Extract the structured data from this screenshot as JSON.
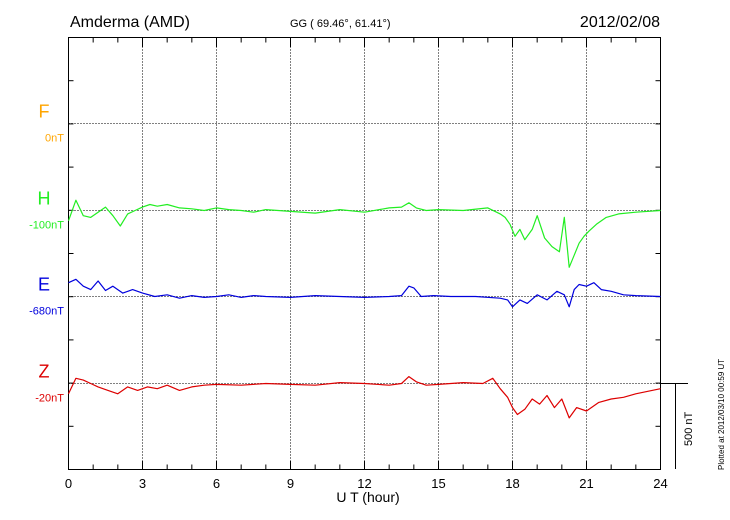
{
  "header": {
    "station": "Amderma (AMD)",
    "coords": "GG ( 69.46°,  61.41°)",
    "date": "2012/02/08"
  },
  "plotted_note": "Plotted at 2012/03/10 00:59 UT",
  "scale_label": "500 nT",
  "chart_data": {
    "type": "line",
    "xlabel": "U T (hour)",
    "xlim": [
      0,
      24
    ],
    "x_ticks": [
      "0",
      "3",
      "6",
      "9",
      "12",
      "15",
      "18",
      "21",
      "24"
    ],
    "grid": true,
    "scale_bar_nT": 500,
    "series": [
      {
        "name": "F",
        "baseline_label": "0nT",
        "color": "#ffa500",
        "x": [],
        "values": []
      },
      {
        "name": "H",
        "baseline_label": "-100nT",
        "color": "#22ee22",
        "x": [
          0,
          0.3,
          0.6,
          0.9,
          1.2,
          1.5,
          1.8,
          2.1,
          2.4,
          2.7,
          3.0,
          3.3,
          3.6,
          4.0,
          4.5,
          5.0,
          5.5,
          6.0,
          6.5,
          7.0,
          7.5,
          8.0,
          9.0,
          10.0,
          11.0,
          12.0,
          13.0,
          13.5,
          13.8,
          14.1,
          14.5,
          15.0,
          16.0,
          17.0,
          17.5,
          17.7,
          17.9,
          18.1,
          18.3,
          18.5,
          18.8,
          19.0,
          19.3,
          19.6,
          19.9,
          20.1,
          20.3,
          20.5,
          20.7,
          20.9,
          21.1,
          21.4,
          21.8,
          22.3,
          23.0,
          24.0
        ],
        "values": [
          -60,
          60,
          -30,
          -40,
          -10,
          20,
          -30,
          -90,
          -20,
          0,
          20,
          35,
          25,
          35,
          15,
          10,
          0,
          15,
          5,
          0,
          -10,
          5,
          -5,
          -15,
          5,
          -10,
          15,
          20,
          45,
          15,
          0,
          5,
          0,
          15,
          -20,
          -40,
          -80,
          -150,
          -110,
          -170,
          -110,
          -30,
          -160,
          -210,
          -240,
          -40,
          -330,
          -260,
          -190,
          -150,
          -120,
          -80,
          -40,
          -20,
          -10,
          0
        ]
      },
      {
        "name": "E",
        "baseline_label": "-680nT",
        "color": "#0000dd",
        "x": [
          0,
          0.3,
          0.6,
          0.9,
          1.2,
          1.5,
          1.8,
          2.2,
          2.6,
          3.0,
          3.5,
          4.0,
          4.5,
          5.0,
          5.5,
          6.0,
          6.5,
          7.0,
          7.5,
          8.0,
          9.0,
          10.0,
          11.0,
          12.0,
          13.0,
          13.5,
          13.8,
          14.0,
          14.3,
          14.8,
          15.5,
          16.5,
          17.5,
          17.8,
          18.0,
          18.3,
          18.6,
          19.0,
          19.4,
          19.8,
          20.1,
          20.3,
          20.5,
          20.7,
          21.0,
          21.3,
          21.6,
          22.0,
          22.5,
          23.0,
          24.0
        ],
        "values": [
          80,
          100,
          60,
          40,
          90,
          35,
          60,
          20,
          40,
          20,
          0,
          10,
          -10,
          5,
          -5,
          0,
          10,
          -5,
          5,
          0,
          -5,
          5,
          0,
          -5,
          0,
          5,
          60,
          50,
          0,
          5,
          0,
          0,
          -10,
          -20,
          -60,
          -20,
          -40,
          10,
          -20,
          30,
          10,
          -60,
          40,
          70,
          60,
          80,
          40,
          30,
          10,
          5,
          0
        ]
      },
      {
        "name": "Z",
        "baseline_label": "-20nT",
        "color": "#dd0000",
        "x": [
          0,
          0.3,
          0.6,
          0.9,
          1.2,
          1.6,
          2.0,
          2.4,
          2.8,
          3.2,
          3.6,
          4.0,
          4.5,
          5.0,
          5.5,
          6.0,
          7.0,
          8.0,
          9.0,
          10.0,
          11.0,
          12.0,
          13.0,
          13.5,
          13.8,
          14.1,
          14.5,
          15.0,
          16.0,
          16.8,
          17.2,
          17.5,
          17.8,
          18.0,
          18.2,
          18.5,
          18.8,
          19.1,
          19.4,
          19.7,
          20.0,
          20.3,
          20.6,
          21.0,
          21.5,
          22.0,
          22.5,
          23.0,
          24.0
        ],
        "values": [
          -60,
          30,
          20,
          0,
          -20,
          -40,
          -60,
          -20,
          -40,
          -20,
          -30,
          -10,
          -40,
          -20,
          -10,
          -5,
          -10,
          0,
          -5,
          -10,
          5,
          0,
          -10,
          0,
          40,
          10,
          -10,
          -5,
          5,
          0,
          30,
          -30,
          -80,
          -140,
          -180,
          -150,
          -90,
          -120,
          -70,
          -140,
          -90,
          -200,
          -140,
          -160,
          -110,
          -90,
          -80,
          -60,
          -30
        ]
      }
    ]
  }
}
